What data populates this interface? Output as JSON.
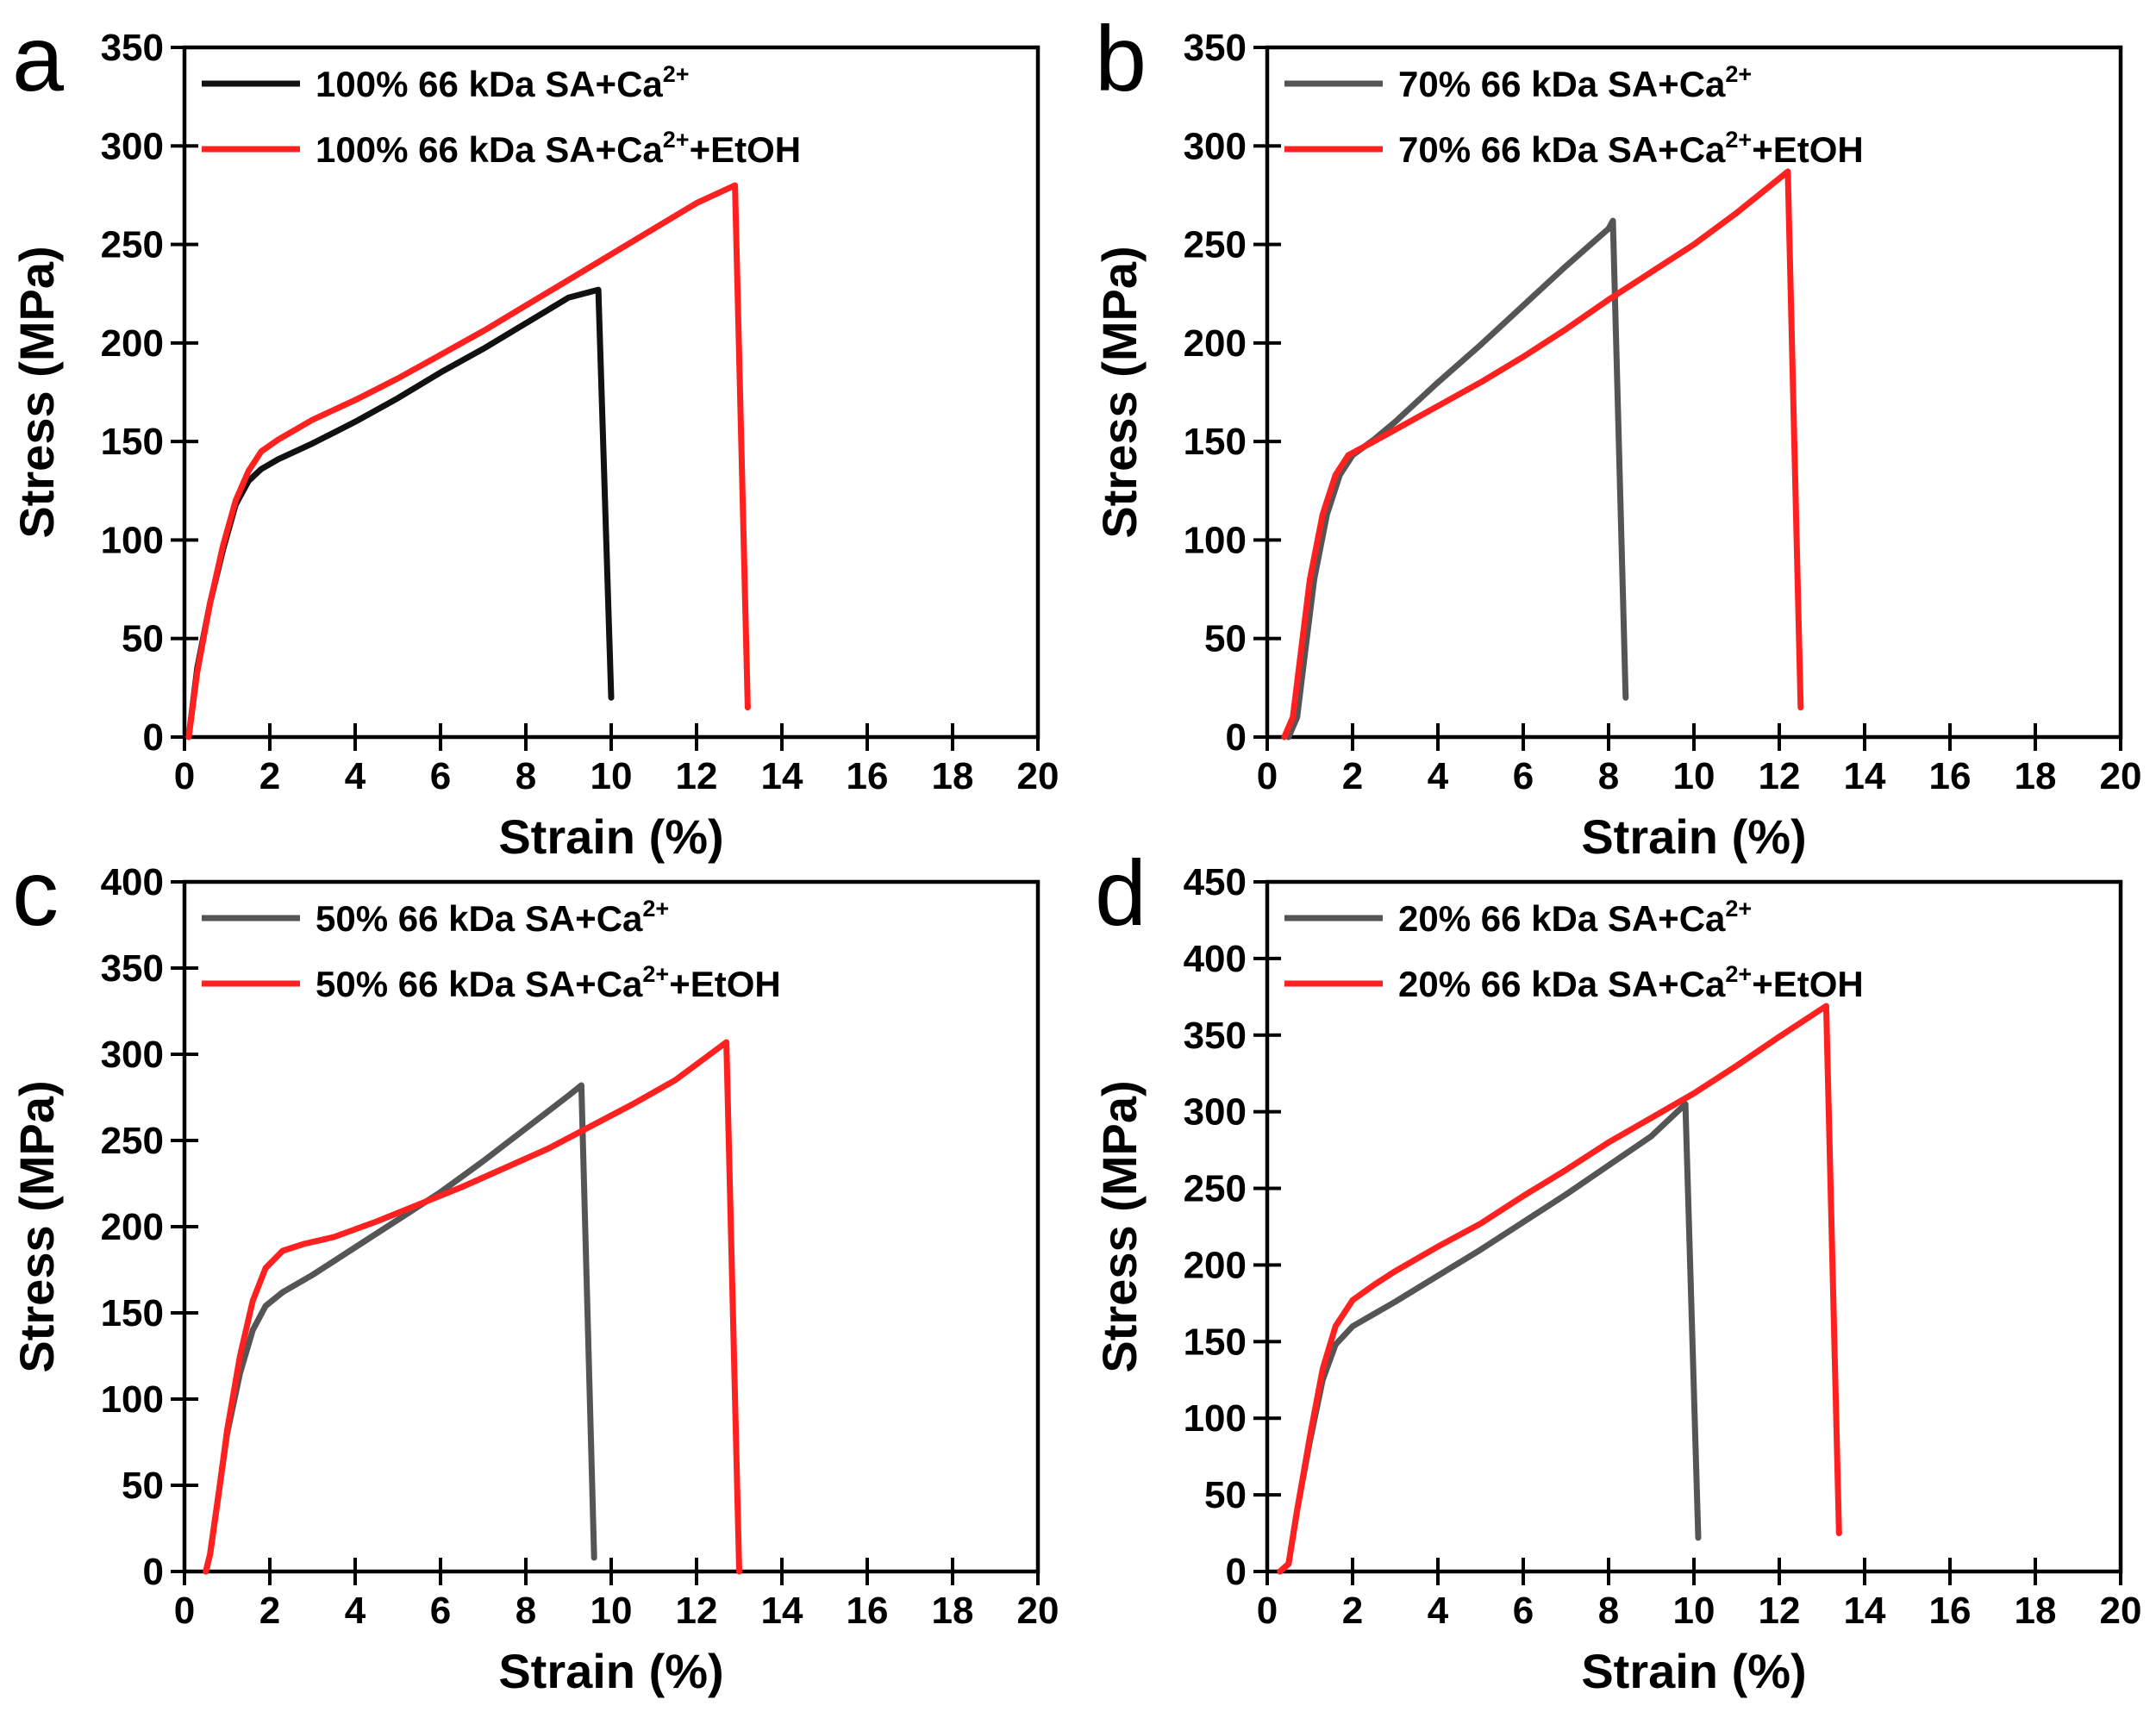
{
  "colors": {
    "black": "#111111",
    "gray": "#555555",
    "red": "#ff2020",
    "frame": "#000000"
  },
  "chart_data": [
    {
      "type": "line",
      "panel_label": "a",
      "xlabel": "Strain (%)",
      "ylabel": "Stress (MPa)",
      "xlim": [
        0,
        20
      ],
      "ylim": [
        0,
        350
      ],
      "xticks": [
        0,
        2,
        4,
        6,
        8,
        10,
        12,
        14,
        16,
        18,
        20
      ],
      "yticks": [
        0,
        50,
        100,
        150,
        200,
        250,
        300,
        350
      ],
      "legend_position": "top-left",
      "series": [
        {
          "name": "100% 66 kDa SA+Ca2+",
          "legend_main": "100% 66 kDa SA+Ca",
          "legend_sup": "2+",
          "legend_tail": "",
          "color": "#111111",
          "x": [
            0.1,
            0.3,
            0.6,
            0.9,
            1.2,
            1.5,
            1.8,
            2.2,
            3.0,
            4.0,
            5.0,
            6.0,
            7.0,
            8.0,
            9.0,
            9.7,
            10.0
          ],
          "y": [
            0,
            35,
            68,
            95,
            118,
            130,
            136,
            141,
            149,
            160,
            172,
            185,
            197,
            210,
            223,
            227,
            20
          ]
        },
        {
          "name": "100% 66 kDa SA+Ca2++EtOH",
          "legend_main": "100% 66 kDa SA+Ca",
          "legend_sup": "2+",
          "legend_tail": "+EtOH",
          "color": "#ff2020",
          "x": [
            0.1,
            0.3,
            0.6,
            0.9,
            1.2,
            1.5,
            1.8,
            2.2,
            3.0,
            4.0,
            5.0,
            6.0,
            7.0,
            8.0,
            9.0,
            10.0,
            11.0,
            12.0,
            12.9,
            13.2
          ],
          "y": [
            0,
            33,
            68,
            97,
            120,
            135,
            145,
            151,
            161,
            171,
            182,
            194,
            206,
            219,
            232,
            245,
            258,
            271,
            280,
            15
          ]
        }
      ]
    },
    {
      "type": "line",
      "panel_label": "b",
      "xlabel": "Strain (%)",
      "ylabel": "Stress (MPa)",
      "xlim": [
        0,
        20
      ],
      "ylim": [
        0,
        350
      ],
      "xticks": [
        0,
        2,
        4,
        6,
        8,
        10,
        12,
        14,
        16,
        18,
        20
      ],
      "yticks": [
        0,
        50,
        100,
        150,
        200,
        250,
        300,
        350
      ],
      "legend_position": "top-left",
      "series": [
        {
          "name": "70% 66 kDa SA+Ca2+",
          "legend_main": "70% 66 kDa SA+Ca",
          "legend_sup": "2+",
          "legend_tail": "",
          "color": "#555555",
          "x": [
            0.5,
            0.7,
            0.9,
            1.1,
            1.4,
            1.7,
            2.0,
            2.5,
            3.0,
            4.0,
            5.0,
            6.0,
            7.0,
            8.0,
            8.1,
            8.4
          ],
          "y": [
            0,
            10,
            45,
            80,
            113,
            133,
            143,
            151,
            160,
            180,
            199,
            219,
            239,
            258,
            262,
            20
          ]
        },
        {
          "name": "70% 66 kDa SA+Ca2++EtOH",
          "legend_main": "70% 66 kDa SA+Ca",
          "legend_sup": "2+",
          "legend_tail": "+EtOH",
          "color": "#ff2020",
          "x": [
            0.4,
            0.6,
            0.8,
            1.0,
            1.3,
            1.6,
            1.9,
            2.5,
            3.0,
            4.0,
            5.0,
            6.0,
            7.0,
            8.0,
            9.0,
            10.0,
            11.0,
            12.2,
            12.5
          ],
          "y": [
            0,
            10,
            45,
            80,
            113,
            133,
            143,
            150,
            156,
            168,
            180,
            193,
            207,
            222,
            236,
            250,
            266,
            287,
            15
          ]
        }
      ]
    },
    {
      "type": "line",
      "panel_label": "c",
      "xlabel": "Strain (%)",
      "ylabel": "Stress (MPa)",
      "xlim": [
        0,
        20
      ],
      "ylim": [
        0,
        400
      ],
      "xticks": [
        0,
        2,
        4,
        6,
        8,
        10,
        12,
        14,
        16,
        18,
        20
      ],
      "yticks": [
        0,
        50,
        100,
        150,
        200,
        250,
        300,
        350,
        400
      ],
      "legend_position": "top-left",
      "series": [
        {
          "name": "50% 66 kDa SA+Ca2+",
          "legend_main": "50% 66 kDa SA+Ca",
          "legend_sup": "2+",
          "legend_tail": "",
          "color": "#555555",
          "x": [
            0.5,
            0.6,
            0.8,
            1.0,
            1.3,
            1.6,
            1.9,
            2.3,
            3.0,
            4.0,
            5.0,
            6.0,
            7.0,
            8.0,
            9.0,
            9.3,
            9.6
          ],
          "y": [
            0,
            10,
            45,
            80,
            115,
            140,
            154,
            162,
            172,
            188,
            204,
            220,
            238,
            257,
            276,
            282,
            8
          ]
        },
        {
          "name": "50% 66 kDa SA+Ca2++EtOH",
          "legend_main": "50% 66 kDa SA+Ca",
          "legend_sup": "2+",
          "legend_tail": "+EtOH",
          "color": "#ff2020",
          "x": [
            0.5,
            0.6,
            0.8,
            1.0,
            1.3,
            1.6,
            1.9,
            2.3,
            2.8,
            3.5,
            4.5,
            5.5,
            6.5,
            7.5,
            8.5,
            9.5,
            10.5,
            11.5,
            12.7,
            13.0
          ],
          "y": [
            0,
            10,
            45,
            82,
            125,
            157,
            176,
            186,
            190,
            194,
            203,
            213,
            223,
            234,
            245,
            258,
            271,
            285,
            307,
            0
          ]
        }
      ]
    },
    {
      "type": "line",
      "panel_label": "d",
      "xlabel": "Strain (%)",
      "ylabel": "Stress (MPa)",
      "xlim": [
        0,
        20
      ],
      "ylim": [
        0,
        450
      ],
      "xticks": [
        0,
        2,
        4,
        6,
        8,
        10,
        12,
        14,
        16,
        18,
        20
      ],
      "yticks": [
        0,
        50,
        100,
        150,
        200,
        250,
        300,
        350,
        400,
        450
      ],
      "legend_position": "top-left",
      "series": [
        {
          "name": "20% 66 kDa SA+Ca2+",
          "legend_main": "20% 66 kDa SA+Ca",
          "legend_sup": "2+",
          "legend_tail": "",
          "color": "#555555",
          "x": [
            0.3,
            0.5,
            0.7,
            1.0,
            1.3,
            1.6,
            2.0,
            2.5,
            3.0,
            4.0,
            5.0,
            6.0,
            7.0,
            8.0,
            9.0,
            9.8,
            10.1
          ],
          "y": [
            0,
            5,
            40,
            85,
            125,
            148,
            160,
            168,
            176,
            193,
            210,
            228,
            246,
            265,
            284,
            305,
            22
          ]
        },
        {
          "name": "20% 66 kDa SA+Ca2++EtOH",
          "legend_main": "20% 66 kDa SA+Ca",
          "legend_sup": "2+",
          "legend_tail": "+EtOH",
          "color": "#ff2020",
          "x": [
            0.3,
            0.5,
            0.7,
            1.0,
            1.3,
            1.6,
            2.0,
            2.5,
            3.0,
            4.0,
            5.0,
            6.0,
            7.0,
            8.0,
            9.0,
            10.0,
            11.0,
            12.0,
            13.1,
            13.4
          ],
          "y": [
            0,
            5,
            40,
            88,
            132,
            160,
            177,
            187,
            196,
            212,
            227,
            245,
            262,
            280,
            296,
            312,
            330,
            349,
            369,
            25
          ]
        }
      ]
    }
  ]
}
